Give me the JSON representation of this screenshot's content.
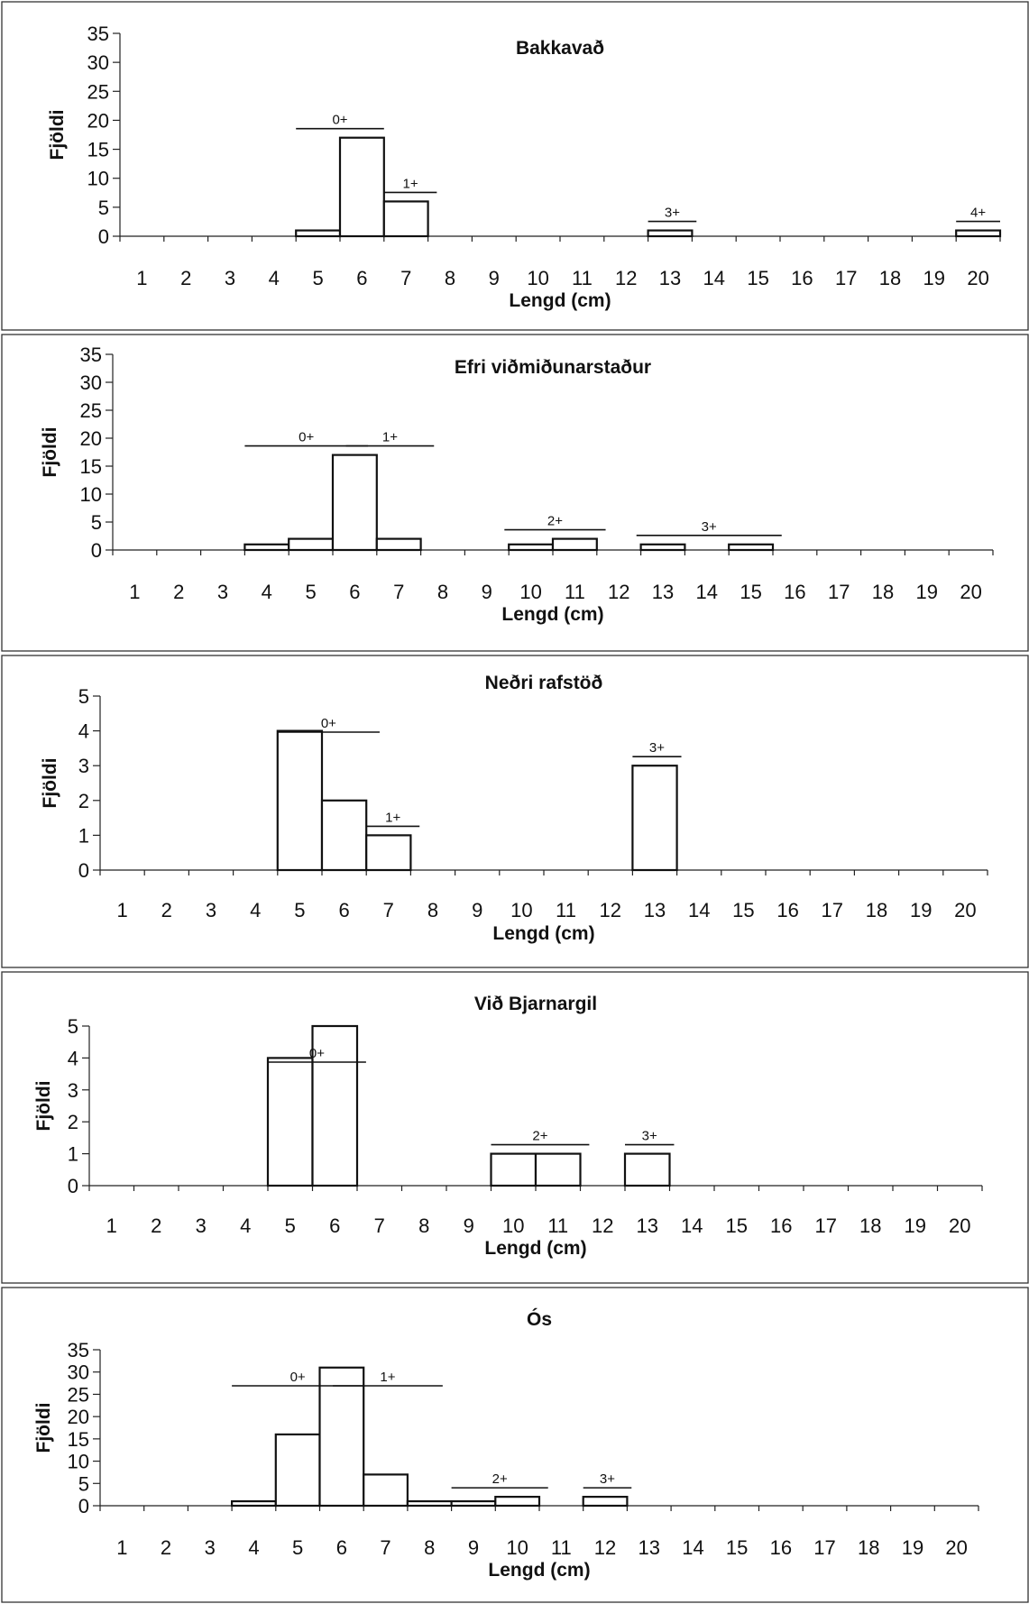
{
  "chart_data": [
    {
      "type": "bar",
      "title": "Bakkavað",
      "xlabel": "Lengd (cm)",
      "ylabel": "Fjöldi",
      "categories": [
        "1",
        "2",
        "3",
        "4",
        "5",
        "6",
        "7",
        "8",
        "9",
        "10",
        "11",
        "12",
        "13",
        "14",
        "15",
        "16",
        "17",
        "18",
        "19",
        "20"
      ],
      "values": [
        0,
        0,
        0,
        0,
        1,
        17,
        6,
        0,
        0,
        0,
        0,
        0,
        1,
        0,
        0,
        0,
        0,
        0,
        0,
        1
      ],
      "ylim": [
        0,
        35
      ],
      "yticks": [
        "0",
        "5",
        "10",
        "15",
        "20",
        "25",
        "30",
        "35"
      ],
      "age_groups": [
        {
          "label": "0+",
          "from": 4.5,
          "to": 6.5
        },
        {
          "label": "1+",
          "from": 6.5,
          "to": 7.7
        },
        {
          "label": "3+",
          "from": 12.5,
          "to": 13.6
        },
        {
          "label": "4+",
          "from": 19.5,
          "to": 20.5
        }
      ]
    },
    {
      "type": "bar",
      "title": "Efri viðmiðunarstaður",
      "xlabel": "Lengd (cm)",
      "ylabel": "Fjöldi",
      "categories": [
        "1",
        "2",
        "3",
        "4",
        "5",
        "6",
        "7",
        "8",
        "9",
        "10",
        "11",
        "12",
        "13",
        "14",
        "15",
        "16",
        "17",
        "18",
        "19",
        "20"
      ],
      "values": [
        0,
        0,
        0,
        1,
        2,
        17,
        2,
        0,
        0,
        1,
        2,
        0,
        1,
        0,
        1,
        0,
        0,
        0,
        0,
        0
      ],
      "ylim": [
        0,
        35
      ],
      "yticks": [
        "0",
        "5",
        "10",
        "15",
        "20",
        "25",
        "30",
        "35"
      ],
      "age_groups": [
        {
          "label": "0+",
          "from": 3.5,
          "to": 6.3
        },
        {
          "label": "1+",
          "from": 5.8,
          "to": 7.8
        },
        {
          "label": "2+",
          "from": 9.4,
          "to": 11.7
        },
        {
          "label": "3+",
          "from": 12.4,
          "to": 15.7
        }
      ]
    },
    {
      "type": "bar",
      "title": "Neðri rafstöð",
      "xlabel": "Lengd (cm)",
      "ylabel": "Fjöldi",
      "categories": [
        "1",
        "2",
        "3",
        "4",
        "5",
        "6",
        "7",
        "8",
        "9",
        "10",
        "11",
        "12",
        "13",
        "14",
        "15",
        "16",
        "17",
        "18",
        "19",
        "20"
      ],
      "values": [
        0,
        0,
        0,
        0,
        4,
        2,
        1,
        0,
        0,
        0,
        0,
        0,
        3,
        0,
        0,
        0,
        0,
        0,
        0,
        0
      ],
      "ylim": [
        0,
        5
      ],
      "yticks": [
        "0",
        "1",
        "2",
        "3",
        "4",
        "5"
      ],
      "age_groups": [
        {
          "label": "0+",
          "from": 4.5,
          "to": 6.8
        },
        {
          "label": "1+",
          "from": 6.5,
          "to": 7.7
        },
        {
          "label": "3+",
          "from": 12.5,
          "to": 13.6
        }
      ]
    },
    {
      "type": "bar",
      "title": "Við Bjarnargil",
      "xlabel": "Lengd (cm)",
      "ylabel": "Fjöldi",
      "categories": [
        "1",
        "2",
        "3",
        "4",
        "5",
        "6",
        "7",
        "8",
        "9",
        "10",
        "11",
        "12",
        "13",
        "14",
        "15",
        "16",
        "17",
        "18",
        "19",
        "20"
      ],
      "values": [
        0,
        0,
        0,
        0,
        4,
        5,
        0,
        0,
        0,
        1,
        1,
        0,
        1,
        0,
        0,
        0,
        0,
        0,
        0,
        0
      ],
      "ylim": [
        0,
        5
      ],
      "yticks": [
        "0",
        "1",
        "2",
        "3",
        "4",
        "5"
      ],
      "age_groups": [
        {
          "label": "0+",
          "from": 4.5,
          "to": 6.7
        },
        {
          "label": "2+",
          "from": 9.5,
          "to": 11.7
        },
        {
          "label": "3+",
          "from": 12.5,
          "to": 13.6
        }
      ]
    },
    {
      "type": "bar",
      "title": "Ós",
      "xlabel": "Lengd (cm)",
      "ylabel": "Fjöldi",
      "categories": [
        "1",
        "2",
        "3",
        "4",
        "5",
        "6",
        "7",
        "8",
        "9",
        "10",
        "11",
        "12",
        "13",
        "14",
        "15",
        "16",
        "17",
        "18",
        "19",
        "20"
      ],
      "values": [
        0,
        0,
        0,
        1,
        16,
        31,
        7,
        1,
        1,
        2,
        0,
        2,
        0,
        0,
        0,
        0,
        0,
        0,
        0,
        0
      ],
      "ylim": [
        0,
        35
      ],
      "yticks": [
        "0",
        "5",
        "10",
        "15",
        "20",
        "25",
        "30",
        "35"
      ],
      "age_groups": [
        {
          "label": "0+",
          "from": 3.5,
          "to": 6.5
        },
        {
          "label": "1+",
          "from": 5.8,
          "to": 8.3
        },
        {
          "label": "2+",
          "from": 8.5,
          "to": 10.7
        },
        {
          "label": "3+",
          "from": 11.5,
          "to": 12.6
        }
      ]
    }
  ]
}
